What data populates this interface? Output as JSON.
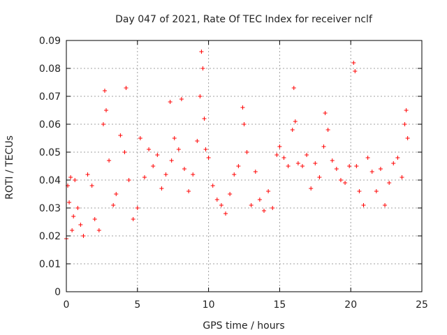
{
  "chart_data": {
    "type": "scatter",
    "title": "Day 047 of 2021, Rate Of TEC Index for receiver nclf",
    "xlabel": "GPS time / hours",
    "ylabel": "ROTI / TECUs",
    "xlim": [
      0,
      25
    ],
    "ylim": [
      0,
      0.09
    ],
    "xticks": [
      0,
      5,
      10,
      15,
      20,
      25
    ],
    "xtick_labels": [
      "0",
      "5",
      "10",
      "15",
      "20",
      "25"
    ],
    "yticks": [
      0,
      0.01,
      0.02,
      0.03,
      0.04,
      0.05,
      0.06,
      0.07,
      0.08,
      0.09
    ],
    "ytick_labels": [
      "0",
      "0.01",
      "0.02",
      "0.03",
      "0.04",
      "0.05",
      "0.06",
      "0.07",
      "0.08",
      "0.09"
    ],
    "grid": true,
    "marker": "+",
    "color": "#ff0000",
    "series": [
      {
        "name": "ROTI",
        "x": [
          0.0,
          0.1,
          0.2,
          0.3,
          0.4,
          0.5,
          0.6,
          0.8,
          1.0,
          1.2,
          1.5,
          1.8,
          2.0,
          2.3,
          2.6,
          2.7,
          2.8,
          3.0,
          3.3,
          3.5,
          3.8,
          4.1,
          4.2,
          4.4,
          4.7,
          5.0,
          5.2,
          5.5,
          5.8,
          6.1,
          6.4,
          6.7,
          7.0,
          7.3,
          7.4,
          7.6,
          7.9,
          8.1,
          8.3,
          8.6,
          8.9,
          9.2,
          9.4,
          9.5,
          9.6,
          9.7,
          9.8,
          10.0,
          10.3,
          10.6,
          10.9,
          11.2,
          11.5,
          11.8,
          12.1,
          12.4,
          12.5,
          12.7,
          13.0,
          13.3,
          13.6,
          13.9,
          14.2,
          14.5,
          14.8,
          15.0,
          15.3,
          15.6,
          15.9,
          16.0,
          16.1,
          16.3,
          16.6,
          16.9,
          17.2,
          17.5,
          17.8,
          18.1,
          18.2,
          18.4,
          18.7,
          19.0,
          19.3,
          19.6,
          19.9,
          20.2,
          20.3,
          20.4,
          20.6,
          20.9,
          21.2,
          21.5,
          21.8,
          22.1,
          22.4,
          22.7,
          23.0,
          23.3,
          23.6,
          23.8,
          23.9,
          24.0
        ],
        "y": [
          0.019,
          0.038,
          0.032,
          0.041,
          0.022,
          0.027,
          0.04,
          0.03,
          0.024,
          0.02,
          0.042,
          0.038,
          0.026,
          0.022,
          0.06,
          0.072,
          0.065,
          0.047,
          0.031,
          0.035,
          0.056,
          0.05,
          0.073,
          0.04,
          0.026,
          0.03,
          0.055,
          0.041,
          0.051,
          0.045,
          0.049,
          0.037,
          0.042,
          0.068,
          0.047,
          0.055,
          0.051,
          0.069,
          0.044,
          0.036,
          0.042,
          0.054,
          0.07,
          0.086,
          0.08,
          0.062,
          0.051,
          0.048,
          0.038,
          0.033,
          0.031,
          0.028,
          0.035,
          0.042,
          0.045,
          0.066,
          0.06,
          0.05,
          0.031,
          0.043,
          0.033,
          0.029,
          0.036,
          0.03,
          0.049,
          0.052,
          0.048,
          0.045,
          0.058,
          0.073,
          0.061,
          0.046,
          0.045,
          0.049,
          0.037,
          0.046,
          0.041,
          0.052,
          0.064,
          0.058,
          0.047,
          0.044,
          0.04,
          0.039,
          0.045,
          0.082,
          0.079,
          0.045,
          0.036,
          0.031,
          0.048,
          0.043,
          0.036,
          0.044,
          0.031,
          0.039,
          0.046,
          0.048,
          0.041,
          0.06,
          0.065,
          0.055
        ]
      }
    ]
  }
}
